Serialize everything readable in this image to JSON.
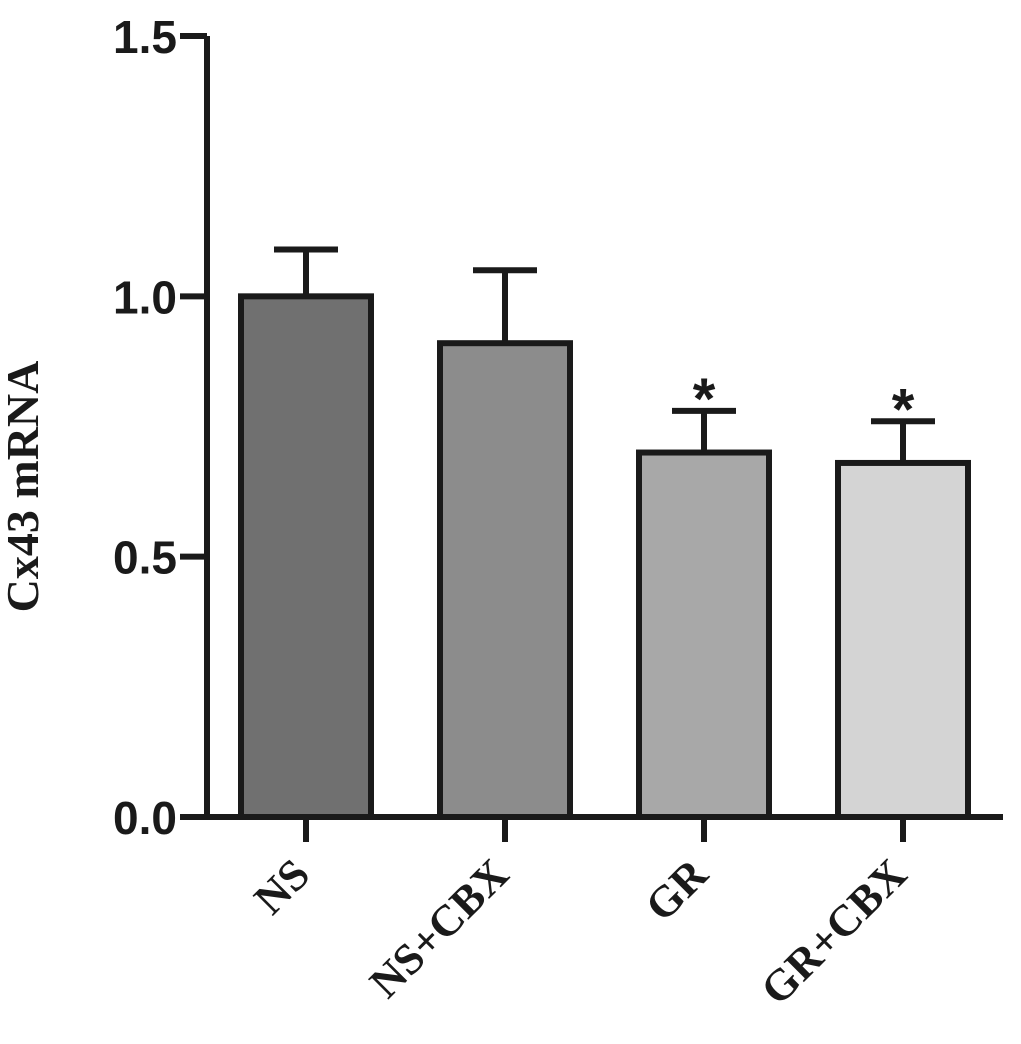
{
  "chart_data": {
    "type": "bar",
    "title": "",
    "xlabel": "",
    "ylabel": "Cx43 mRNA",
    "ylim": [
      0,
      1.5
    ],
    "yticks": [
      0.0,
      0.5,
      1.0,
      1.5
    ],
    "ytick_labels": [
      "0.0",
      "0.5",
      "1.0",
      "1.5"
    ],
    "categories": [
      "NS",
      "NS+CBX",
      "GR",
      "GR+CBX"
    ],
    "values": [
      1.0,
      0.91,
      0.7,
      0.68
    ],
    "errors": [
      0.09,
      0.14,
      0.08,
      0.08
    ],
    "significance": [
      "",
      "",
      "*",
      "*"
    ],
    "bar_colors": [
      "#707070",
      "#8c8c8c",
      "#a8a8a8",
      "#d4d4d4"
    ],
    "grid": false,
    "legend": "none"
  }
}
